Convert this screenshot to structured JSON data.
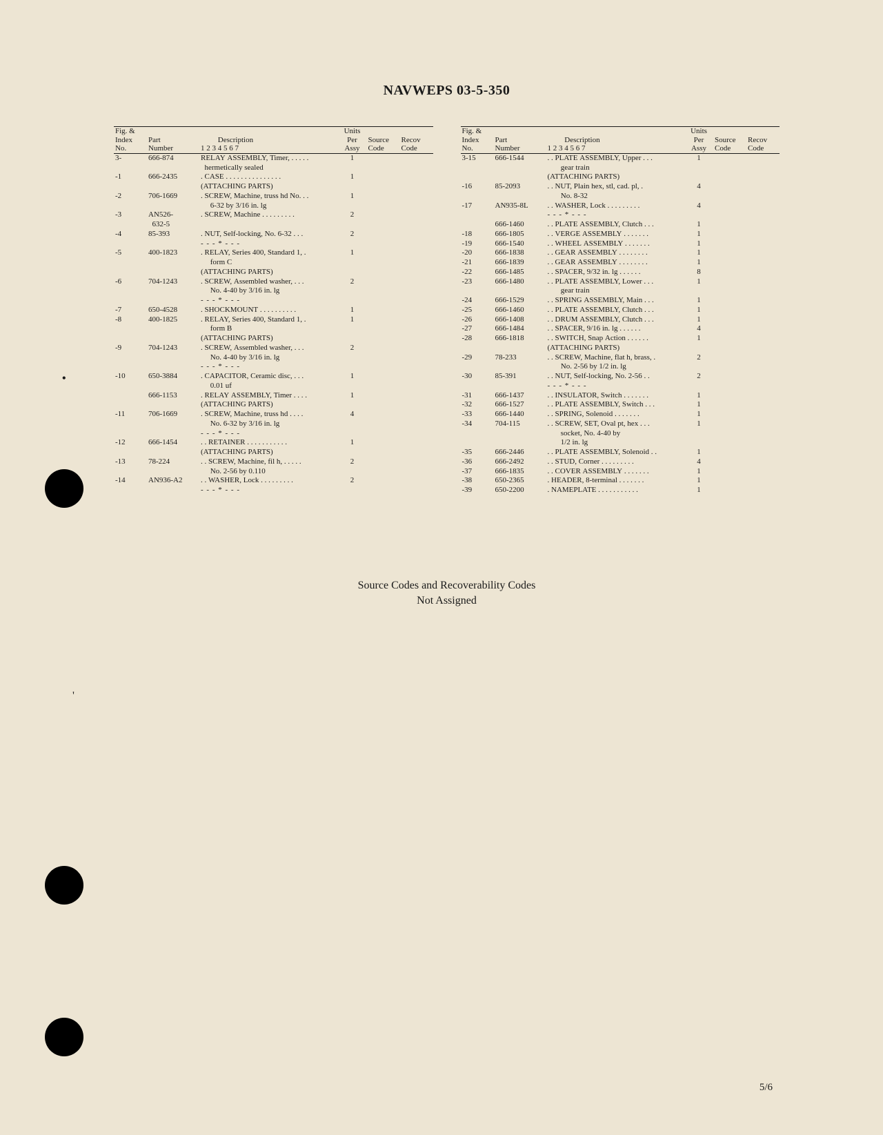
{
  "document_title": "NAVWEPS 03-5-350",
  "page_number": "5/6",
  "footer_note_line1": "Source Codes and Recoverability Codes",
  "footer_note_line2": "Not Assigned",
  "headers": {
    "fig_index": "Fig. &\nIndex\nNo.",
    "part": "Part\nNumber",
    "desc": "Description\n1 2 3 4 5 6 7",
    "units": "Units\nPer\nAssy",
    "source": "Source\nCode",
    "recov": "Recov\nCode"
  },
  "left_rows": [
    {
      "idx": "3-",
      "part": "666-874",
      "desc": "RELAY ASSEMBLY, Timer, . . . . .",
      "qty": "1"
    },
    {
      "idx": "",
      "part": "",
      "desc": "  hermetically sealed",
      "qty": ""
    },
    {
      "idx": "-1",
      "part": "666-2435",
      "desc": ". CASE . . . . . . . . . . . . . . .",
      "qty": "1"
    },
    {
      "idx": "",
      "part": "",
      "desc": "(ATTACHING PARTS)",
      "qty": ""
    },
    {
      "idx": "-2",
      "part": "706-1669",
      "desc": ". SCREW, Machine, truss hd No. . .",
      "qty": "1"
    },
    {
      "idx": "",
      "part": "",
      "desc": "     6-32 by 3/16 in. lg",
      "qty": ""
    },
    {
      "idx": "-3",
      "part": "AN526-",
      "desc": ". SCREW, Machine . . . . . . . . .",
      "qty": "2"
    },
    {
      "idx": "",
      "part": "  632-5",
      "desc": "",
      "qty": ""
    },
    {
      "idx": "-4",
      "part": "85-393",
      "desc": ". NUT, Self-locking, No. 6-32 . . .",
      "qty": "2"
    },
    {
      "idx": "",
      "part": "",
      "desc": "- - - * - - -",
      "qty": "",
      "sep": true
    },
    {
      "idx": "-5",
      "part": "400-1823",
      "desc": ". RELAY, Series 400, Standard 1, .",
      "qty": "1"
    },
    {
      "idx": "",
      "part": "",
      "desc": "     form C",
      "qty": ""
    },
    {
      "idx": "",
      "part": "",
      "desc": "(ATTACHING PARTS)",
      "qty": ""
    },
    {
      "idx": "-6",
      "part": "704-1243",
      "desc": ". SCREW, Assembled washer, . . .",
      "qty": "2"
    },
    {
      "idx": "",
      "part": "",
      "desc": "     No. 4-40 by 3/16 in. lg",
      "qty": ""
    },
    {
      "idx": "",
      "part": "",
      "desc": "- - - * - - -",
      "qty": "",
      "sep": true
    },
    {
      "idx": "-7",
      "part": "650-4528",
      "desc": ". SHOCKMOUNT . . . . . . . . . .",
      "qty": "1"
    },
    {
      "idx": "-8",
      "part": "400-1825",
      "desc": ". RELAY, Series 400, Standard 1, .",
      "qty": "1"
    },
    {
      "idx": "",
      "part": "",
      "desc": "     form B",
      "qty": ""
    },
    {
      "idx": "",
      "part": "",
      "desc": "(ATTACHING PARTS)",
      "qty": ""
    },
    {
      "idx": "-9",
      "part": "704-1243",
      "desc": ". SCREW, Assembled washer, . . .",
      "qty": "2"
    },
    {
      "idx": "",
      "part": "",
      "desc": "     No. 4-40 by 3/16 in. lg",
      "qty": ""
    },
    {
      "idx": "",
      "part": "",
      "desc": "- - - * - - -",
      "qty": "",
      "sep": true
    },
    {
      "idx": "-10",
      "part": "650-3884",
      "desc": ". CAPACITOR, Ceramic disc, . . .",
      "qty": "1"
    },
    {
      "idx": "",
      "part": "",
      "desc": "     0.01 uf",
      "qty": ""
    },
    {
      "idx": "",
      "part": "666-1153",
      "desc": ". RELAY ASSEMBLY, Timer . . . .",
      "qty": "1"
    },
    {
      "idx": "",
      "part": "",
      "desc": "(ATTACHING PARTS)",
      "qty": ""
    },
    {
      "idx": "-11",
      "part": "706-1669",
      "desc": ". SCREW, Machine, truss hd . . . .",
      "qty": "4"
    },
    {
      "idx": "",
      "part": "",
      "desc": "     No. 6-32 by 3/16 in. lg",
      "qty": ""
    },
    {
      "idx": "",
      "part": "",
      "desc": "- - - * - - -",
      "qty": "",
      "sep": true
    },
    {
      "idx": "-12",
      "part": "666-1454",
      "desc": ". . RETAINER . . . . . . . . . . .",
      "qty": "1"
    },
    {
      "idx": "",
      "part": "",
      "desc": "(ATTACHING PARTS)",
      "qty": ""
    },
    {
      "idx": "-13",
      "part": "78-224",
      "desc": ". . SCREW, Machine, fil h, . . . . .",
      "qty": "2"
    },
    {
      "idx": "",
      "part": "",
      "desc": "     No. 2-56 by 0.110",
      "qty": ""
    },
    {
      "idx": "-14",
      "part": "AN936-A2",
      "desc": ". . WASHER, Lock . . . . . . . . .",
      "qty": "2"
    },
    {
      "idx": "",
      "part": "",
      "desc": "- - - * - - -",
      "qty": "",
      "sep": true
    }
  ],
  "right_rows": [
    {
      "idx": "3-15",
      "part": "666-1544",
      "desc": ". . PLATE ASSEMBLY, Upper . . .",
      "qty": "1"
    },
    {
      "idx": "",
      "part": "",
      "desc": "       gear train",
      "qty": ""
    },
    {
      "idx": "",
      "part": "",
      "desc": "(ATTACHING PARTS)",
      "qty": ""
    },
    {
      "idx": "-16",
      "part": "85-2093",
      "desc": ". . NUT, Plain hex, stl, cad. pl, .",
      "qty": "4"
    },
    {
      "idx": "",
      "part": "",
      "desc": "       No. 8-32",
      "qty": ""
    },
    {
      "idx": "-17",
      "part": "AN935-8L",
      "desc": ". . WASHER, Lock . . . . . . . . .",
      "qty": "4"
    },
    {
      "idx": "",
      "part": "",
      "desc": "- - - * - - -",
      "qty": "",
      "sep": true
    },
    {
      "idx": "",
      "part": "666-1460",
      "desc": ". . PLATE ASSEMBLY, Clutch . . .",
      "qty": "1"
    },
    {
      "idx": "-18",
      "part": "666-1805",
      "desc": ". . VERGE ASSEMBLY . . . . . . .",
      "qty": "1"
    },
    {
      "idx": "-19",
      "part": "666-1540",
      "desc": ". . WHEEL ASSEMBLY . . . . . . .",
      "qty": "1"
    },
    {
      "idx": "-20",
      "part": "666-1838",
      "desc": ". . GEAR ASSEMBLY . . . . . . . .",
      "qty": "1"
    },
    {
      "idx": "-21",
      "part": "666-1839",
      "desc": ". . GEAR ASSEMBLY . . . . . . . .",
      "qty": "1"
    },
    {
      "idx": "-22",
      "part": "666-1485",
      "desc": ". . SPACER, 9/32 in. lg . . . . . .",
      "qty": "8"
    },
    {
      "idx": "-23",
      "part": "666-1480",
      "desc": ". . PLATE ASSEMBLY, Lower . . .",
      "qty": "1"
    },
    {
      "idx": "",
      "part": "",
      "desc": "       gear train",
      "qty": ""
    },
    {
      "idx": "-24",
      "part": "666-1529",
      "desc": ". . SPRING ASSEMBLY, Main . . .",
      "qty": "1"
    },
    {
      "idx": "-25",
      "part": "666-1460",
      "desc": ". . PLATE ASSEMBLY, Clutch . . .",
      "qty": "1"
    },
    {
      "idx": "-26",
      "part": "666-1408",
      "desc": ". . DRUM ASSEMBLY, Clutch . . .",
      "qty": "1"
    },
    {
      "idx": "-27",
      "part": "666-1484",
      "desc": ". . SPACER, 9/16 in. lg . . . . . .",
      "qty": "4"
    },
    {
      "idx": "-28",
      "part": "666-1818",
      "desc": ". . SWITCH, Snap Action . . . . . .",
      "qty": "1"
    },
    {
      "idx": "",
      "part": "",
      "desc": "(ATTACHING PARTS)",
      "qty": ""
    },
    {
      "idx": "-29",
      "part": "78-233",
      "desc": ". . SCREW, Machine, flat h, brass, .",
      "qty": "2"
    },
    {
      "idx": "",
      "part": "",
      "desc": "       No. 2-56 by 1/2 in. lg",
      "qty": ""
    },
    {
      "idx": "-30",
      "part": "85-391",
      "desc": ". . NUT, Self-locking, No. 2-56 . .",
      "qty": "2"
    },
    {
      "idx": "",
      "part": "",
      "desc": "- - - * - - -",
      "qty": "",
      "sep": true
    },
    {
      "idx": "-31",
      "part": "666-1437",
      "desc": ". . INSULATOR, Switch . . . . . . .",
      "qty": "1"
    },
    {
      "idx": "-32",
      "part": "666-1527",
      "desc": ". . PLATE ASSEMBLY, Switch . . .",
      "qty": "1"
    },
    {
      "idx": "-33",
      "part": "666-1440",
      "desc": ". . SPRING, Solenoid . . . . . . .",
      "qty": "1"
    },
    {
      "idx": "-34",
      "part": "704-115",
      "desc": ". . SCREW, SET, Oval pt, hex . . .",
      "qty": "1"
    },
    {
      "idx": "",
      "part": "",
      "desc": "       socket, No. 4-40 by",
      "qty": ""
    },
    {
      "idx": "",
      "part": "",
      "desc": "       1/2 in. lg",
      "qty": ""
    },
    {
      "idx": "-35",
      "part": "666-2446",
      "desc": ". . PLATE ASSEMBLY, Solenoid . .",
      "qty": "1"
    },
    {
      "idx": "-36",
      "part": "666-2492",
      "desc": ". . STUD, Corner . . . . . . . . .",
      "qty": "4"
    },
    {
      "idx": "-37",
      "part": "666-1835",
      "desc": ". . COVER ASSEMBLY . . . . . . .",
      "qty": "1"
    },
    {
      "idx": "-38",
      "part": "650-2365",
      "desc": ". HEADER, 8-terminal . . . . . . .",
      "qty": "1"
    },
    {
      "idx": "-39",
      "part": "650-2200",
      "desc": ". NAMEPLATE . . . . . . . . . . .",
      "qty": "1"
    }
  ]
}
